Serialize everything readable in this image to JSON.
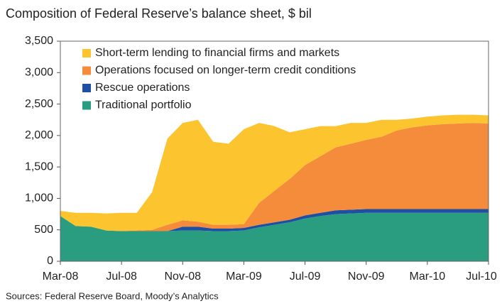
{
  "chart_data": {
    "type": "stacked_area",
    "title": "Composition of Federal Reserve’s balance sheet, $ bil",
    "source": "Sources: Federal Reserve Board, Moody’s Analytics",
    "categories": [
      "Mar-08",
      null,
      null,
      null,
      "Jul-08",
      null,
      null,
      null,
      "Nov-08",
      null,
      null,
      null,
      "Mar-09",
      null,
      null,
      null,
      "Jul-09",
      null,
      null,
      null,
      "Nov-09",
      null,
      null,
      null,
      "Mar-10",
      null,
      null,
      null,
      "Jul-10"
    ],
    "series": [
      {
        "name": "Short-term lending to financial firms and markets",
        "color": "#fcc42f",
        "values": [
          80,
          210,
          220,
          270,
          290,
          280,
          600,
          1370,
          1550,
          1620,
          1320,
          1290,
          1510,
          1270,
          1030,
          740,
          570,
          480,
          340,
          330,
          270,
          270,
          170,
          140,
          140,
          140,
          140,
          130,
          130
        ]
      },
      {
        "name": "Operations focused on longer-term credit conditions",
        "color": "#f58c3b",
        "values": [
          0,
          0,
          0,
          0,
          0,
          10,
          20,
          100,
          100,
          80,
          60,
          60,
          60,
          350,
          500,
          650,
          800,
          900,
          1000,
          1050,
          1100,
          1150,
          1250,
          1300,
          1330,
          1350,
          1360,
          1370,
          1360
        ]
      },
      {
        "name": "Rescue operations",
        "color": "#1f4fa2",
        "values": [
          0,
          0,
          0,
          0,
          0,
          0,
          0,
          0,
          60,
          60,
          40,
          40,
          40,
          40,
          40,
          40,
          50,
          50,
          60,
          60,
          60,
          60,
          60,
          60,
          60,
          60,
          60,
          60,
          60
        ]
      },
      {
        "name": "Traditional portfolio",
        "color": "#2a9d80",
        "values": [
          720,
          560,
          550,
          490,
          480,
          480,
          480,
          480,
          490,
          490,
          480,
          480,
          490,
          540,
          580,
          620,
          680,
          720,
          750,
          760,
          770,
          770,
          770,
          770,
          770,
          770,
          770,
          770,
          770
        ]
      }
    ],
    "ylim": [
      0,
      3500
    ],
    "yticks": [
      0,
      500,
      {
        "value": 1000,
        "label": "1,000"
      },
      {
        "value": 1500,
        "label": "1,500"
      },
      {
        "value": 2000,
        "label": "2,000"
      },
      {
        "value": 2500,
        "label": "2,500"
      },
      {
        "value": 3000,
        "label": "3,000"
      },
      {
        "value": 3500,
        "label": "3,500"
      }
    ],
    "legend": "upper-left"
  }
}
